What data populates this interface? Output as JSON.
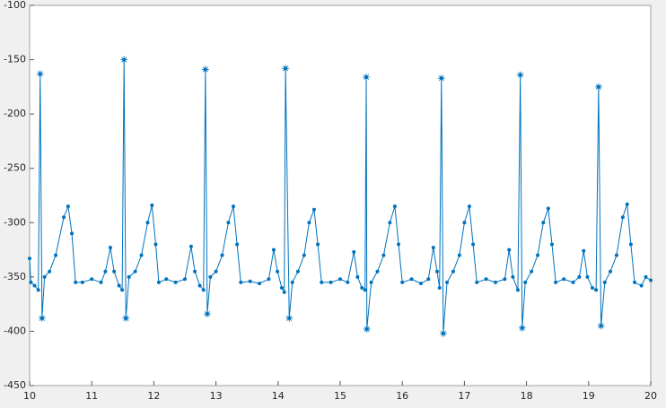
{
  "chart_data": {
    "type": "line",
    "xlim": [
      10,
      20
    ],
    "ylim": [
      -450,
      -100
    ],
    "xticks": [
      10,
      11,
      12,
      13,
      14,
      15,
      16,
      17,
      18,
      19,
      20
    ],
    "yticks": [
      -450,
      -400,
      -350,
      -300,
      -250,
      -200,
      -150,
      -100
    ],
    "series": [
      {
        "color": "#0072bd",
        "marker": "dot",
        "x": [
          10.0,
          10.02,
          10.08,
          10.14,
          10.17,
          10.2,
          10.24,
          10.32,
          10.42,
          10.55,
          10.62,
          10.68,
          10.74,
          10.85,
          11.0,
          11.15,
          11.22,
          11.3,
          11.36,
          11.44,
          11.49,
          11.52,
          11.55,
          11.6,
          11.7,
          11.8,
          11.9,
          11.97,
          12.03,
          12.08,
          12.2,
          12.35,
          12.5,
          12.6,
          12.66,
          12.74,
          12.8,
          12.83,
          12.86,
          12.91,
          13.0,
          13.1,
          13.2,
          13.28,
          13.34,
          13.4,
          13.55,
          13.7,
          13.85,
          13.93,
          13.99,
          14.06,
          14.1,
          14.12,
          14.18,
          14.23,
          14.32,
          14.42,
          14.5,
          14.58,
          14.64,
          14.7,
          14.85,
          15.0,
          15.12,
          15.22,
          15.28,
          15.35,
          15.4,
          15.42,
          15.43,
          15.5,
          15.6,
          15.7,
          15.8,
          15.88,
          15.94,
          16.0,
          16.15,
          16.3,
          16.42,
          16.5,
          16.56,
          16.6,
          16.63,
          16.66,
          16.72,
          16.82,
          16.92,
          17.0,
          17.08,
          17.14,
          17.2,
          17.35,
          17.5,
          17.65,
          17.72,
          17.78,
          17.86,
          17.9,
          17.93,
          17.98,
          18.08,
          18.18,
          18.27,
          18.35,
          18.41,
          18.47,
          18.6,
          18.75,
          18.85,
          18.92,
          18.98,
          19.06,
          19.12,
          19.16,
          19.2,
          19.26,
          19.35,
          19.45,
          19.55,
          19.62,
          19.68,
          19.74,
          19.85,
          19.92,
          20.0
        ],
        "values": [
          -333,
          -355,
          -358,
          -362,
          -163,
          -388,
          -350,
          -345,
          -330,
          -295,
          -285,
          -310,
          -355,
          -355,
          -352,
          -355,
          -345,
          -323,
          -345,
          -358,
          -362,
          -150,
          -388,
          -350,
          -345,
          -330,
          -300,
          -284,
          -320,
          -355,
          -352,
          -355,
          -352,
          -322,
          -345,
          -358,
          -362,
          -159,
          -384,
          -350,
          -345,
          -330,
          -300,
          -285,
          -320,
          -355,
          -354,
          -356,
          -352,
          -325,
          -345,
          -360,
          -364,
          -158,
          -388,
          -355,
          -345,
          -330,
          -300,
          -288,
          -320,
          -355,
          -355,
          -352,
          -355,
          -327,
          -350,
          -360,
          -362,
          -166,
          -398,
          -355,
          -345,
          -330,
          -300,
          -285,
          -320,
          -355,
          -352,
          -356,
          -352,
          -323,
          -345,
          -360,
          -167,
          -402,
          -355,
          -345,
          -330,
          -300,
          -285,
          -320,
          -355,
          -352,
          -355,
          -352,
          -325,
          -350,
          -362,
          -164,
          -397,
          -355,
          -345,
          -330,
          -300,
          -287,
          -320,
          -355,
          -352,
          -355,
          -350,
          -326,
          -350,
          -360,
          -362,
          -175,
          -395,
          -355,
          -345,
          -330,
          -295,
          -283,
          -320,
          -355,
          -358,
          -350,
          -353
        ]
      },
      {
        "color": "#0072bd",
        "marker": "asterisk",
        "x": [
          10.17,
          11.52,
          12.83,
          14.12,
          15.42,
          16.63,
          17.9,
          19.16
        ],
        "values": [
          -163,
          -150,
          -159,
          -158,
          -166,
          -167,
          -164,
          -175
        ]
      },
      {
        "color": "#0072bd",
        "marker": "asterisk",
        "x": [
          10.2,
          11.55,
          12.86,
          14.18,
          15.43,
          16.66,
          17.93,
          19.2
        ],
        "values": [
          -388,
          -388,
          -384,
          -388,
          -398,
          -402,
          -397,
          -395
        ]
      }
    ]
  }
}
